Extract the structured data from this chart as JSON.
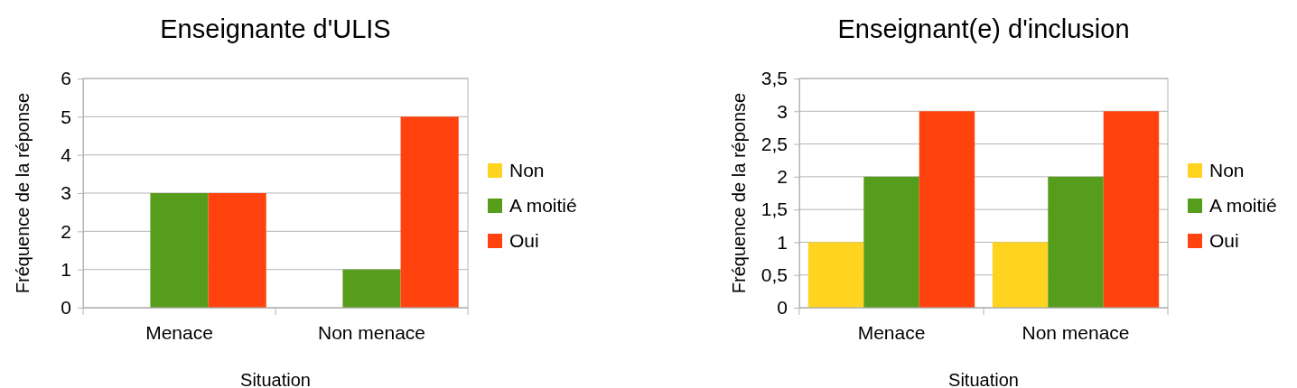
{
  "chart_data": [
    {
      "type": "bar",
      "title": "Enseignante d'ULIS",
      "xlabel": "Situation",
      "ylabel": "Fréquence de la réponse",
      "categories": [
        "Menace",
        "Non menace"
      ],
      "series": [
        {
          "name": "Non",
          "color": "#ffd320",
          "values": [
            0,
            0
          ]
        },
        {
          "name": "A moitié",
          "color": "#579d1c",
          "values": [
            3,
            1
          ]
        },
        {
          "name": "Oui",
          "color": "#ff420e",
          "values": [
            3,
            5
          ]
        }
      ],
      "ylim": [
        0,
        6
      ],
      "yticks": [
        0,
        1,
        2,
        3,
        4,
        5,
        6
      ],
      "grid": "y",
      "legend": "right"
    },
    {
      "type": "bar",
      "title": "Enseignant(e) d'inclusion",
      "xlabel": "Situation",
      "ylabel": "Fréquence de la réponse",
      "categories": [
        "Menace",
        "Non menace"
      ],
      "series": [
        {
          "name": "Non",
          "color": "#ffd320",
          "values": [
            1,
            1
          ]
        },
        {
          "name": "A moitié",
          "color": "#579d1c",
          "values": [
            2,
            2
          ]
        },
        {
          "name": "Oui",
          "color": "#ff420e",
          "values": [
            3,
            3
          ]
        }
      ],
      "ylim": [
        0,
        3.5
      ],
      "yticks": [
        0,
        {
          "value": 0.5,
          "label": "0,5"
        },
        1,
        {
          "value": 1.5,
          "label": "1,5"
        },
        2,
        {
          "value": 2.5,
          "label": "2,5"
        },
        3,
        {
          "value": 3.5,
          "label": "3,5"
        }
      ],
      "grid": "y",
      "legend": "right"
    }
  ]
}
